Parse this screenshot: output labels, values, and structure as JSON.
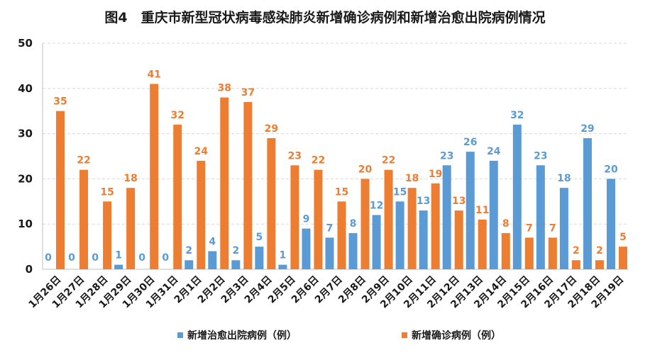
{
  "chart_data": {
    "type": "bar",
    "title": "图4　重庆市新型冠状病毒感染肺炎新增确诊病例和新增治愈出院病例情况",
    "categories": [
      "1月26日",
      "1月27日",
      "1月28日",
      "1月29日",
      "1月30日",
      "1月31日",
      "2月1日",
      "2月2日",
      "2月3日",
      "2月4日",
      "2月5日",
      "2月6日",
      "2月7日",
      "2月8日",
      "2月9日",
      "2月10日",
      "2月11日",
      "2月12日",
      "2月13日",
      "2月14日",
      "2月15日",
      "2月16日",
      "2月17日",
      "2月18日",
      "2月19日"
    ],
    "series": [
      {
        "name": "新增治愈出院病例（例）",
        "color": "#5B9BD5",
        "values": [
          0,
          0,
          0,
          1,
          0,
          0,
          2,
          4,
          2,
          5,
          1,
          9,
          7,
          8,
          12,
          15,
          13,
          23,
          26,
          24,
          32,
          23,
          18,
          29,
          20
        ]
      },
      {
        "name": "新增确诊病例（例）",
        "color": "#ED7D31",
        "values": [
          35,
          22,
          15,
          18,
          41,
          32,
          24,
          38,
          37,
          29,
          23,
          22,
          15,
          20,
          22,
          18,
          19,
          13,
          11,
          8,
          7,
          7,
          2,
          2,
          5
        ]
      }
    ],
    "ylim": [
      0,
      50
    ],
    "yticks": [
      0,
      10,
      20,
      30,
      40,
      50
    ],
    "grid": true,
    "legend_position": "bottom"
  }
}
